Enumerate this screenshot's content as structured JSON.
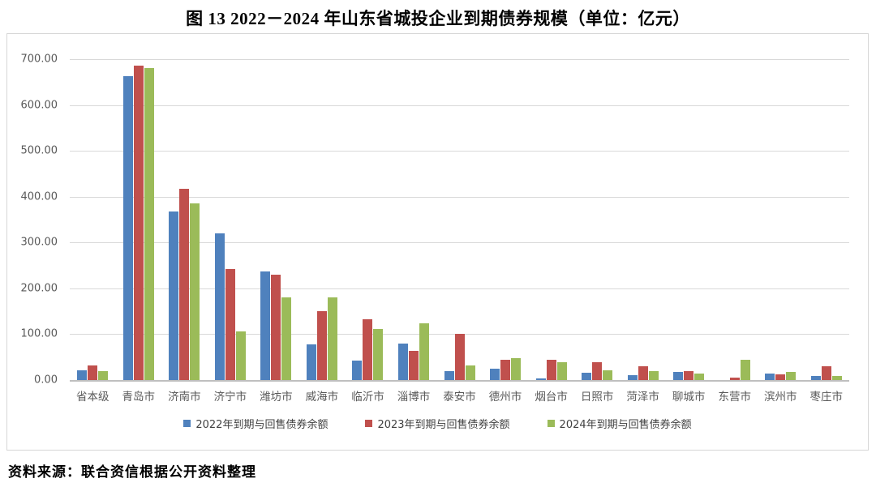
{
  "title": "图 13  2022－2024 年山东省城投企业到期债券规模（单位：亿元）",
  "source_note": "资料来源：联合资信根据公开资料整理",
  "chart_data": {
    "type": "bar",
    "title": "2022－2024 年山东省城投企业到期债券规模",
    "unit_label": "亿元",
    "categories": [
      "省本级",
      "青岛市",
      "济南市",
      "济宁市",
      "潍坊市",
      "威海市",
      "临沂市",
      "淄博市",
      "泰安市",
      "德州市",
      "烟台市",
      "日照市",
      "菏泽市",
      "聊城市",
      "东营市",
      "滨州市",
      "枣庄市"
    ],
    "series": [
      {
        "name": "2022年到期与回售债券余额",
        "color": "#4f81bd",
        "values": [
          21,
          663,
          367,
          320,
          236,
          77,
          42,
          79,
          20,
          25,
          4,
          16,
          11,
          17,
          0,
          14,
          8
        ]
      },
      {
        "name": "2023年到期与回售债券余额",
        "color": "#c0504d",
        "values": [
          31,
          686,
          417,
          243,
          229,
          150,
          132,
          63,
          101,
          45,
          45,
          39,
          30,
          20,
          5,
          13,
          30
        ]
      },
      {
        "name": "2024年到期与回售债券余额",
        "color": "#9bbb59",
        "values": [
          20,
          680,
          385,
          106,
          180,
          180,
          111,
          124,
          32,
          48,
          39,
          21,
          19,
          14,
          44,
          18,
          9
        ]
      }
    ],
    "ylim": [
      0,
      700
    ],
    "y_ticks": [
      "700.00",
      "600.00",
      "500.00",
      "400.00",
      "300.00",
      "200.00",
      "100.00",
      "0.00"
    ],
    "y_tick_values": [
      700,
      600,
      500,
      400,
      300,
      200,
      100,
      0
    ],
    "grid": true,
    "legend_position": "bottom",
    "xlabel": "",
    "ylabel": ""
  }
}
